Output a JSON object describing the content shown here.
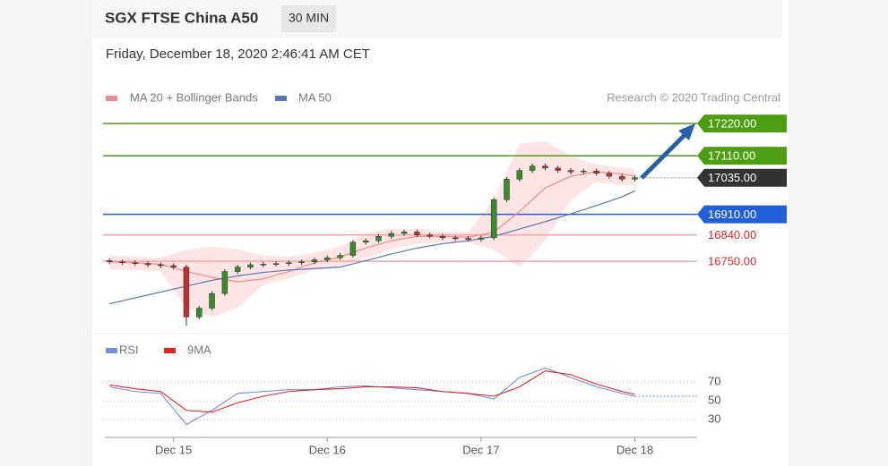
{
  "header": {
    "title": "SGX FTSE China A50",
    "timeframe": "30 MIN",
    "date": "Friday, December 18, 2020 2:46:41 AM CET",
    "credit": "Research © 2020 Trading Central"
  },
  "chart_data": [
    {
      "type": "candlestick",
      "xlim": [
        -11,
        82
      ],
      "ylim": [
        16500,
        17260
      ],
      "x": [
        -10,
        -8,
        -6,
        -4,
        -2,
        0,
        2,
        4,
        6,
        8,
        10,
        12,
        14,
        16,
        18,
        20,
        22,
        24,
        26,
        28,
        30,
        32,
        34,
        36,
        38,
        40,
        42,
        44,
        46,
        48,
        50,
        52,
        54,
        56,
        58,
        60,
        62,
        64,
        66,
        68,
        70,
        72
      ],
      "open": [
        16752,
        16748,
        16745,
        16742,
        16738,
        16735,
        16730,
        16560,
        16590,
        16640,
        16715,
        16730,
        16738,
        16740,
        16742,
        16745,
        16748,
        16755,
        16762,
        16770,
        16815,
        16820,
        16835,
        16845,
        16850,
        16840,
        16835,
        16830,
        16828,
        16825,
        16830,
        16960,
        17030,
        17060,
        17075,
        17068,
        17060,
        17055,
        17058,
        17050,
        17040,
        17030
      ],
      "high": [
        16760,
        16756,
        16753,
        16750,
        16746,
        16743,
        16738,
        16598,
        16648,
        16723,
        16738,
        16746,
        16748,
        16750,
        16753,
        16756,
        16763,
        16770,
        16778,
        16823,
        16828,
        16843,
        16853,
        16858,
        16858,
        16848,
        16843,
        16838,
        16836,
        16838,
        16968,
        17038,
        17068,
        17083,
        17083,
        17076,
        17068,
        17066,
        17066,
        17058,
        17048,
        17043
      ],
      "low": [
        16740,
        16737,
        16734,
        16730,
        16727,
        16722,
        16530,
        16552,
        16582,
        16632,
        16707,
        16722,
        16730,
        16732,
        16734,
        16737,
        16740,
        16747,
        16754,
        16762,
        16807,
        16812,
        16827,
        16837,
        16832,
        16827,
        16822,
        16820,
        16817,
        16817,
        16822,
        16952,
        17022,
        17052,
        17060,
        17052,
        17047,
        17047,
        17042,
        17032,
        17022,
        17022
      ],
      "close": [
        16748,
        16745,
        16742,
        16738,
        16735,
        16730,
        16560,
        16590,
        16640,
        16715,
        16730,
        16738,
        16740,
        16742,
        16745,
        16748,
        16755,
        16762,
        16770,
        16815,
        16820,
        16835,
        16845,
        16850,
        16840,
        16835,
        16830,
        16828,
        16825,
        16830,
        16960,
        17030,
        17060,
        17075,
        17068,
        17060,
        17055,
        17058,
        17050,
        17040,
        17030,
        17035
      ],
      "up_color": "#3c8a2e",
      "down_color": "#b83232",
      "series": [
        {
          "name": "MA 20 + Bollinger Bands",
          "color": "#f08a8a",
          "band_color": "#fde0e0",
          "x": [
            -10,
            -6,
            -2,
            2,
            6,
            10,
            14,
            18,
            22,
            26,
            30,
            34,
            38,
            42,
            46,
            50,
            54,
            58,
            62,
            66,
            70,
            72
          ],
          "values": [
            16748,
            16745,
            16740,
            16715,
            16695,
            16680,
            16690,
            16715,
            16745,
            16765,
            16795,
            16820,
            16835,
            16835,
            16832,
            16850,
            16920,
            17000,
            17040,
            17055,
            17048,
            17040
          ],
          "upper": [
            16770,
            16765,
            16762,
            16790,
            16800,
            16790,
            16770,
            16765,
            16780,
            16800,
            16845,
            16862,
            16860,
            16850,
            16850,
            16960,
            17150,
            17160,
            17110,
            17080,
            17070,
            17065
          ],
          "lower": [
            16720,
            16720,
            16715,
            16590,
            16560,
            16590,
            16670,
            16690,
            16720,
            16730,
            16760,
            16790,
            16810,
            16815,
            16815,
            16790,
            16730,
            16820,
            16960,
            17020,
            17010,
            17010
          ]
        },
        {
          "name": "MA 50",
          "color": "#5578b8",
          "x": [
            -10,
            -6,
            -2,
            2,
            6,
            10,
            14,
            18,
            22,
            26,
            30,
            34,
            38,
            42,
            46,
            50,
            54,
            58,
            62,
            66,
            70,
            72
          ],
          "values": [
            16605,
            16625,
            16645,
            16665,
            16685,
            16700,
            16712,
            16720,
            16725,
            16730,
            16752,
            16775,
            16795,
            16810,
            16820,
            16835,
            16860,
            16885,
            16912,
            16940,
            16970,
            16990
          ]
        }
      ],
      "levels": [
        {
          "value": 17220,
          "label": "17220.00",
          "color": "#4d9e12",
          "box": true
        },
        {
          "value": 17110,
          "label": "17110.00",
          "color": "#4d9e12",
          "box": true
        },
        {
          "value": 17035,
          "label": "17035.00",
          "color": "#333333",
          "box": true,
          "dashed": true
        },
        {
          "value": 16910,
          "label": "16910.00",
          "color": "#2160d8",
          "box": true
        },
        {
          "value": 16840,
          "label": "16840.00",
          "color": "#f5a3a3",
          "text_color": "#e02424",
          "box": false
        },
        {
          "value": 16750,
          "label": "16750.00",
          "color": "#f5a3a3",
          "text_color": "#e02424",
          "box": false
        }
      ]
    },
    {
      "type": "line",
      "xlim": [
        -11,
        82
      ],
      "ylim": [
        15,
        95
      ],
      "yticks": [
        70,
        50,
        30
      ],
      "xticks": [
        {
          "value": 0,
          "label": "Dec 15"
        },
        {
          "value": 24,
          "label": "Dec 16"
        },
        {
          "value": 48,
          "label": "Dec 17"
        },
        {
          "value": 72,
          "label": "Dec 18"
        }
      ],
      "series": [
        {
          "name": "RSI",
          "color": "#6f8fe0",
          "x": [
            -10,
            -6,
            -2,
            2,
            6,
            10,
            14,
            18,
            22,
            26,
            30,
            34,
            38,
            42,
            46,
            50,
            54,
            58,
            62,
            66,
            70,
            72
          ],
          "values": [
            65,
            60,
            58,
            25,
            40,
            58,
            60,
            62,
            62,
            65,
            66,
            64,
            62,
            60,
            58,
            52,
            75,
            85,
            75,
            65,
            58,
            55
          ]
        },
        {
          "name": "9MA",
          "color": "#e82020",
          "x": [
            -10,
            -6,
            -2,
            2,
            6,
            10,
            14,
            18,
            22,
            26,
            30,
            34,
            38,
            42,
            46,
            50,
            54,
            58,
            62,
            66,
            70,
            72
          ],
          "values": [
            67,
            63,
            60,
            40,
            38,
            48,
            55,
            60,
            62,
            63,
            65,
            65,
            64,
            60,
            58,
            55,
            65,
            82,
            78,
            68,
            60,
            57
          ]
        }
      ]
    }
  ]
}
